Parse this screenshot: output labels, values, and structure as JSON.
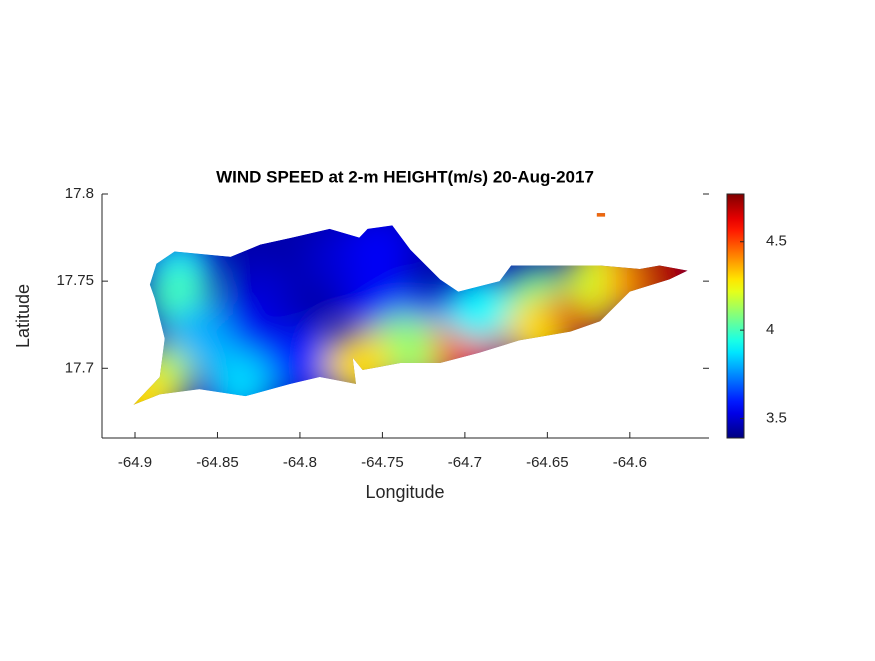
{
  "chart_data": {
    "type": "map",
    "title": "WIND SPEED at 2-m HEIGHT(m/s) 20-Aug-2017",
    "xlabel": "Longitude",
    "ylabel": "Latitude",
    "xlim": [
      -64.92,
      -64.552
    ],
    "ylim": [
      17.66,
      17.8
    ],
    "xticks": [
      -64.9,
      -64.85,
      -64.8,
      -64.75,
      -64.7,
      -64.65,
      -64.6
    ],
    "yticks": [
      17.7,
      17.75,
      17.8
    ],
    "colormap": "jet",
    "clim": [
      3.39,
      4.77
    ],
    "cticks": [
      3.5,
      4,
      4.5
    ],
    "outlines": [
      {
        "lon": [
          -64.891,
          -64.887,
          -64.876,
          -64.842,
          -64.824,
          -64.805,
          -64.782,
          -64.764,
          -64.759,
          -64.744,
          -64.733,
          -64.715,
          -64.704,
          -64.679,
          -64.672,
          -64.618,
          -64.594,
          -64.582,
          -64.565,
          -64.576,
          -64.6,
          -64.618,
          -64.636,
          -64.667,
          -64.691,
          -64.715,
          -64.739,
          -64.762,
          -64.768,
          -64.766,
          -64.788,
          -64.806,
          -64.833,
          -64.861,
          -64.885,
          -64.901,
          -64.885,
          -64.882,
          -64.888
        ],
        "lat": [
          17.748,
          17.76,
          17.767,
          17.764,
          17.771,
          17.775,
          17.78,
          17.775,
          17.78,
          17.782,
          17.768,
          17.751,
          17.744,
          17.75,
          17.759,
          17.759,
          17.757,
          17.759,
          17.756,
          17.751,
          17.744,
          17.727,
          17.721,
          17.716,
          17.709,
          17.703,
          17.703,
          17.699,
          17.706,
          17.691,
          17.695,
          17.691,
          17.684,
          17.688,
          17.685,
          17.679,
          17.695,
          17.717,
          17.74
        ]
      },
      {
        "lon": [
          -64.62,
          -64.615,
          -64.615,
          -64.62
        ],
        "lat": [
          17.789,
          17.789,
          17.787,
          17.787
        ]
      }
    ],
    "points": {
      "lon": [
        -64.8,
        -64.824,
        -64.776,
        -64.752,
        -64.836,
        -64.8,
        -64.873,
        -64.873,
        -64.861,
        -64.885,
        -64.897,
        -64.836,
        -64.727,
        -64.727,
        -64.697,
        -64.691,
        -64.655,
        -64.655,
        -64.627,
        -64.618,
        -64.594,
        -64.576,
        -64.752,
        -64.739,
        -64.764,
        -64.618
      ],
      "lat": [
        17.745,
        17.74,
        17.763,
        17.74,
        17.717,
        17.705,
        17.757,
        17.74,
        17.717,
        17.694,
        17.682,
        17.691,
        17.722,
        17.708,
        17.714,
        17.734,
        17.74,
        17.722,
        17.734,
        17.751,
        17.751,
        17.755,
        17.768,
        17.711,
        17.702,
        17.788
      ],
      "values": [
        3.45,
        3.5,
        3.5,
        3.55,
        3.55,
        3.6,
        3.85,
        4.0,
        3.8,
        4.15,
        4.3,
        3.85,
        3.75,
        4.3,
        4.6,
        3.9,
        4.05,
        4.3,
        4.65,
        4.2,
        4.4,
        4.7,
        3.55,
        4.1,
        4.3,
        4.45
      ]
    }
  }
}
